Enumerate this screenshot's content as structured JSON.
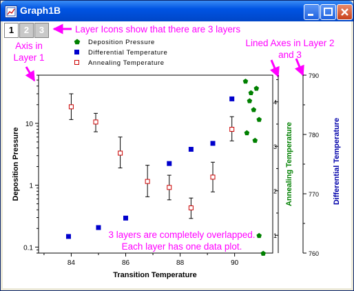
{
  "window": {
    "title": "Graph1B",
    "min_icon": "minimize-icon",
    "max_icon": "maximize-icon",
    "close_icon": "close-icon"
  },
  "layers": {
    "tabs": [
      "1",
      "2",
      "3"
    ],
    "active": "1"
  },
  "annotations": {
    "layer_icons": "Layer Icons show that there are 3 layers",
    "axis_layer1_line1": "Axis in",
    "axis_layer1_line2": "Layer 1",
    "lined_axes_line1": "Lined Axes in Layer 2",
    "lined_axes_line2": "and 3",
    "overlap_line1": "3 layers are completely overlapped.",
    "overlap_line2": "Each layer has one data plot."
  },
  "colors": {
    "annotation": "#ff00ff",
    "deposition": "#008000",
    "differential": "#0000cc",
    "annealing": "#cc0000",
    "ylabel2": "#008000",
    "ylabel3": "#0000aa"
  },
  "chart_data": {
    "type": "scatter",
    "xlabel": "Transition Temperature",
    "xlim": [
      82.8,
      91.4
    ],
    "xticks": [
      84,
      86,
      88,
      90
    ],
    "legend_position": "top-left",
    "layers": [
      {
        "layer": 1,
        "ylabel": "Deposition Pressure",
        "yscale": "log",
        "ylim": [
          0.08,
          60
        ],
        "yticks": [
          0.1,
          1,
          10
        ],
        "yticklabels": [
          "0.1",
          "1",
          "10"
        ],
        "series": [
          {
            "name": "Annealing Temperature",
            "marker": "open-square",
            "x": [
              84.0,
              84.9,
              85.8,
              86.8,
              87.6,
              88.4,
              89.2,
              89.9
            ],
            "y": [
              18.5,
              10.5,
              3.3,
              1.15,
              0.92,
              0.43,
              1.35,
              8.0
            ],
            "yerr_low": [
              11.5,
              7.3,
              1.9,
              0.65,
              0.58,
              0.29,
              0.78,
              5.2
            ],
            "yerr_high": [
              30.0,
              14.5,
              6.0,
              2.1,
              1.45,
              0.62,
              2.35,
              12.8
            ]
          }
        ]
      },
      {
        "layer": 2,
        "ylabel": "Annealing Temperature",
        "ylim": [
          0.6,
          4.6
        ],
        "yticks": [
          1,
          2,
          3,
          4
        ],
        "series": [
          {
            "name": "Deposition Pressure",
            "marker": "filled-pentagon",
            "x": [
              90.4,
              90.6,
              90.8,
              90.55,
              90.7,
              90.9,
              90.45,
              90.75,
              90.9,
              91.05
            ],
            "y": [
              4.46,
              4.2,
              4.3,
              4.02,
              3.82,
              3.6,
              3.3,
              3.13,
              0.99,
              0.59
            ]
          }
        ]
      },
      {
        "layer": 3,
        "ylabel": "Differential Temperature",
        "ylim": [
          760,
          790
        ],
        "yticks": [
          760,
          770,
          780,
          790
        ],
        "series": [
          {
            "name": "Differential Temperature",
            "marker": "filled-square",
            "x": [
              83.9,
              85.0,
              86.0,
              87.6,
              88.4,
              89.2,
              89.9
            ],
            "y": [
              762.8,
              764.3,
              765.9,
              775.1,
              777.5,
              778.5,
              786.0
            ]
          }
        ]
      }
    ]
  }
}
